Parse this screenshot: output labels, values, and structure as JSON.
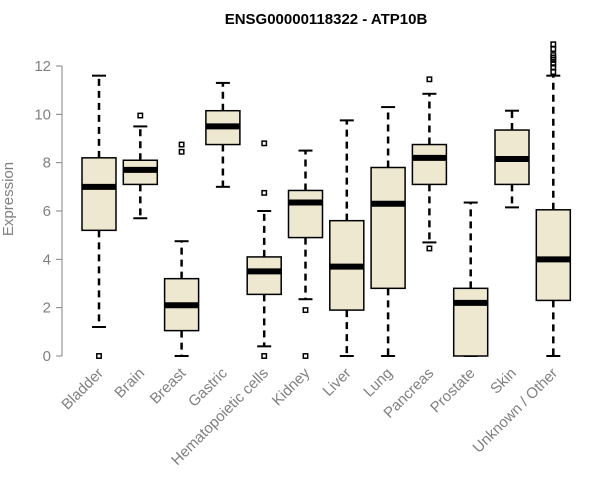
{
  "chart_data": {
    "type": "boxplot",
    "title": "ENSG00000118322 - ATP10B",
    "xlabel": "",
    "ylabel": "Expression",
    "ylim": [
      0,
      12
    ],
    "yticks": [
      0,
      2,
      4,
      6,
      8,
      10,
      12
    ],
    "colors": {
      "box_fill": "#EEE8D1",
      "axis": "#808080",
      "text": "#808080"
    },
    "categories": [
      "Bladder",
      "Brain",
      "Breast",
      "Gastric",
      "Hematopoietic cells",
      "Kidney",
      "Liver",
      "Lung",
      "Pancreas",
      "Prostate",
      "Skin",
      "Unknown / Other"
    ],
    "boxes": [
      {
        "name": "Bladder",
        "min": 1.2,
        "q1": 5.2,
        "median": 7.0,
        "q3": 8.2,
        "max": 11.6,
        "outliers": [
          0.0
        ]
      },
      {
        "name": "Brain",
        "min": 5.7,
        "q1": 7.1,
        "median": 7.7,
        "q3": 8.1,
        "max": 9.5,
        "outliers": [
          9.95
        ]
      },
      {
        "name": "Breast",
        "min": 0.0,
        "q1": 1.05,
        "median": 2.1,
        "q3": 3.2,
        "max": 4.75,
        "outliers": [
          8.45,
          8.75
        ]
      },
      {
        "name": "Gastric",
        "min": 7.0,
        "q1": 8.75,
        "median": 9.5,
        "q3": 10.15,
        "max": 11.3,
        "outliers": []
      },
      {
        "name": "Hematopoietic cells",
        "min": 0.4,
        "q1": 2.55,
        "median": 3.5,
        "q3": 4.1,
        "max": 6.0,
        "outliers": [
          0.0,
          6.75,
          8.8
        ]
      },
      {
        "name": "Kidney",
        "min": 2.35,
        "q1": 4.9,
        "median": 6.35,
        "q3": 6.85,
        "max": 8.5,
        "outliers": [
          0.0,
          1.9
        ]
      },
      {
        "name": "Liver",
        "min": 0.0,
        "q1": 1.9,
        "median": 3.7,
        "q3": 5.6,
        "max": 9.75,
        "outliers": []
      },
      {
        "name": "Lung",
        "min": 0.0,
        "q1": 2.8,
        "median": 6.3,
        "q3": 7.8,
        "max": 10.3,
        "outliers": []
      },
      {
        "name": "Pancreas",
        "min": 4.7,
        "q1": 7.1,
        "median": 8.2,
        "q3": 8.75,
        "max": 10.85,
        "outliers": [
          4.45,
          11.45
        ]
      },
      {
        "name": "Prostate",
        "min": 0.0,
        "q1": 0.0,
        "median": 2.2,
        "q3": 2.8,
        "max": 6.35,
        "outliers": []
      },
      {
        "name": "Skin",
        "min": 6.15,
        "q1": 7.1,
        "median": 8.15,
        "q3": 9.35,
        "max": 10.15,
        "outliers": []
      },
      {
        "name": "Unknown / Other",
        "min": 0.0,
        "q1": 2.3,
        "median": 4.0,
        "q3": 6.05,
        "max": 11.6,
        "outliers": [
          11.75,
          11.95,
          12.1,
          12.25,
          12.35,
          12.45,
          12.7,
          12.9
        ]
      }
    ]
  }
}
